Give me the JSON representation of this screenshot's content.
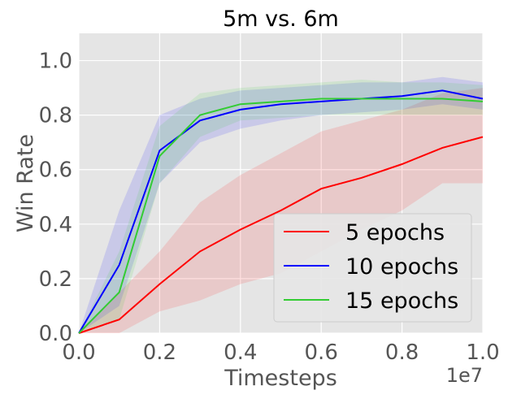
{
  "chart_data": {
    "type": "line",
    "title": "5m vs. 6m",
    "xlabel": "Timesteps",
    "ylabel": "Win Rate",
    "x_multiplier_label": "1e7",
    "xlim": [
      0,
      1.0
    ],
    "ylim": [
      0,
      1.1
    ],
    "xticks": [
      "0.0",
      "0.2",
      "0.4",
      "0.6",
      "0.8",
      "1.0"
    ],
    "yticks": [
      "0.0",
      "0.2",
      "0.4",
      "0.6",
      "0.8",
      "1.0"
    ],
    "grid": true,
    "legend_position": "lower-right",
    "x": [
      0,
      0.1,
      0.2,
      0.3,
      0.4,
      0.5,
      0.6,
      0.7,
      0.8,
      0.9,
      1.0
    ],
    "series": [
      {
        "name": "5 epochs",
        "color": "#ff0000",
        "values": [
          0.0,
          0.05,
          0.18,
          0.3,
          0.38,
          0.45,
          0.53,
          0.57,
          0.62,
          0.68,
          0.72
        ],
        "band": [
          [
            0.0,
            0.0
          ],
          [
            0.0,
            0.15
          ],
          [
            0.08,
            0.3
          ],
          [
            0.12,
            0.48
          ],
          [
            0.18,
            0.58
          ],
          [
            0.22,
            0.66
          ],
          [
            0.3,
            0.74
          ],
          [
            0.38,
            0.78
          ],
          [
            0.45,
            0.82
          ],
          [
            0.55,
            0.88
          ],
          [
            0.55,
            0.9
          ]
        ]
      },
      {
        "name": "10 epochs",
        "color": "#0000ff",
        "values": [
          0.0,
          0.25,
          0.67,
          0.78,
          0.82,
          0.84,
          0.85,
          0.86,
          0.87,
          0.89,
          0.86
        ],
        "band": [
          [
            0.0,
            0.0
          ],
          [
            0.1,
            0.45
          ],
          [
            0.55,
            0.8
          ],
          [
            0.7,
            0.86
          ],
          [
            0.75,
            0.89
          ],
          [
            0.78,
            0.9
          ],
          [
            0.8,
            0.91
          ],
          [
            0.81,
            0.92
          ],
          [
            0.82,
            0.92
          ],
          [
            0.84,
            0.94
          ],
          [
            0.82,
            0.92
          ]
        ]
      },
      {
        "name": "15 epochs",
        "color": "#33cc33",
        "values": [
          0.0,
          0.15,
          0.65,
          0.8,
          0.84,
          0.85,
          0.86,
          0.86,
          0.86,
          0.86,
          0.85
        ],
        "band": [
          [
            0.0,
            0.0
          ],
          [
            0.05,
            0.3
          ],
          [
            0.55,
            0.76
          ],
          [
            0.72,
            0.88
          ],
          [
            0.78,
            0.9
          ],
          [
            0.79,
            0.91
          ],
          [
            0.8,
            0.92
          ],
          [
            0.8,
            0.93
          ],
          [
            0.8,
            0.92
          ],
          [
            0.8,
            0.92
          ],
          [
            0.8,
            0.91
          ]
        ]
      }
    ]
  }
}
